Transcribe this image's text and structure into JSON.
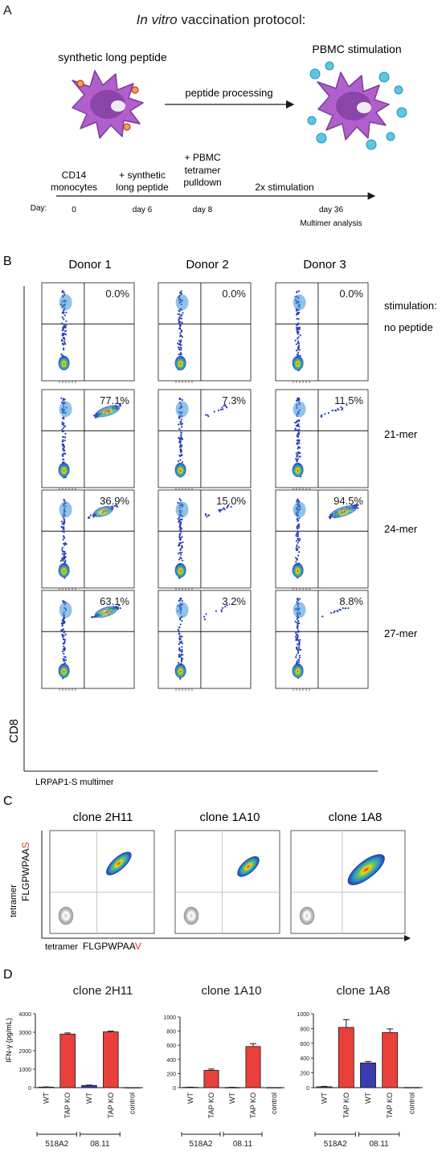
{
  "panel_a": {
    "label": "A",
    "title_italic": "In vitro",
    "title_rest": " vaccination protocol:",
    "left_label": "synthetic long peptide",
    "arrow_label": "peptide processing",
    "right_label": "PBMC stimulation",
    "timeline": {
      "day_prefix": "Day:",
      "steps": [
        {
          "top": "CD14",
          "bottom": "monocytes",
          "extra": "",
          "day": "0"
        },
        {
          "top": "+ synthetic",
          "bottom": "long peptide",
          "extra": "",
          "day": "day 6"
        },
        {
          "top": "+ PBMC",
          "bottom": "tetramer",
          "extra": "pulldown",
          "day": "day 8"
        },
        {
          "top": "2x stimulation",
          "bottom": "",
          "extra": "",
          "day": "day 36"
        }
      ],
      "end_note": "Multimer analysis"
    }
  },
  "panel_b": {
    "label": "B",
    "donors": [
      "Donor 1",
      "Donor 2",
      "Donor 3"
    ],
    "stim_header": "stimulation:",
    "rows": [
      {
        "name": "no peptide",
        "pcts": [
          "0.0%",
          "0.0%",
          "0.0%"
        ],
        "frac": [
          0.0,
          0.0,
          0.0
        ]
      },
      {
        "name": "21-mer",
        "pcts": [
          "77.1%",
          "7.3%",
          "11.5%"
        ],
        "frac": [
          0.771,
          0.073,
          0.115
        ]
      },
      {
        "name": "24-mer",
        "pcts": [
          "36.9%",
          "15.0%",
          "94.5%"
        ],
        "frac": [
          0.369,
          0.15,
          0.945
        ]
      },
      {
        "name": "27-mer",
        "pcts": [
          "63.1%",
          "3.2%",
          "8.8%"
        ],
        "frac": [
          0.631,
          0.032,
          0.088
        ]
      }
    ],
    "y_axis": "CD8",
    "x_axis": "LRPAP1-S multimer"
  },
  "panel_c": {
    "label": "C",
    "clones": [
      "clone 2H11",
      "clone 1A10",
      "clone 1A8"
    ],
    "y_axis_prefix": "tetramer",
    "y_axis_seq": "FLGPWPAA",
    "y_axis_var": "S",
    "x_axis_prefix": "tetramer",
    "x_axis_seq": "FLGPWPAA",
    "x_axis_var": "V"
  },
  "panel_d": {
    "label": "D",
    "y_label": "IFN-γ (pg/mL)",
    "colors": {
      "wt": "#3b3bb0",
      "ko": "#e8403a"
    },
    "group_labels": [
      "518A2",
      "08.11"
    ],
    "categories": [
      "WT",
      "TAP KO",
      "WT",
      "TAP KO",
      "control"
    ]
  },
  "chart_data": [
    {
      "type": "bar",
      "title": "clone 2H11",
      "categories": [
        "WT",
        "TAP KO",
        "WT",
        "TAP KO",
        "control"
      ],
      "values": [
        30,
        2900,
        120,
        3020,
        5
      ],
      "errors": [
        10,
        60,
        20,
        40,
        0
      ],
      "ylabel": "IFN-γ (pg/mL)",
      "ylim": [
        0,
        4000
      ],
      "yticks": [
        "0",
        "1000",
        "2000",
        "3000",
        "4000"
      ]
    },
    {
      "type": "bar",
      "title": "clone 1A10",
      "categories": [
        "WT",
        "TAP KO",
        "WT",
        "TAP KO",
        "control"
      ],
      "values": [
        5,
        245,
        3,
        582,
        2
      ],
      "errors": [
        2,
        18,
        2,
        40,
        0
      ],
      "ylabel": "",
      "ylim": [
        0,
        1000
      ],
      "yticks": [
        "0",
        "200",
        "400",
        "600",
        "800",
        "1000"
      ]
    },
    {
      "type": "bar",
      "title": "clone 1A8",
      "categories": [
        "WT",
        "TAP KO",
        "WT",
        "TAP KO",
        "control"
      ],
      "values": [
        12,
        815,
        335,
        745,
        3
      ],
      "errors": [
        5,
        105,
        20,
        50,
        0
      ],
      "ylabel": "",
      "ylim": [
        0,
        1000
      ],
      "yticks": [
        "0",
        "200",
        "400",
        "600",
        "800",
        "1000"
      ]
    }
  ]
}
